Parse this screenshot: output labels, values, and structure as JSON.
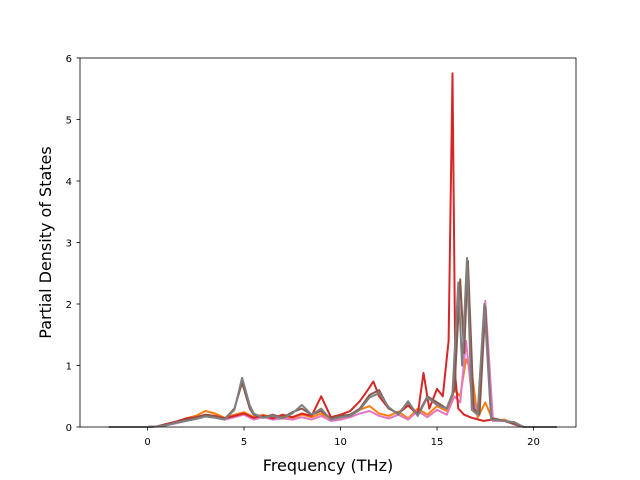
{
  "chart_data": {
    "type": "line",
    "title": "",
    "xlabel": "Frequency (THz)",
    "ylabel": "Partial Density of States",
    "xlim": [
      -3.5,
      22.2
    ],
    "ylim": [
      0,
      6
    ],
    "xticks": [
      0,
      5,
      10,
      15,
      20
    ],
    "yticks": [
      0,
      1,
      2,
      3,
      4,
      5,
      6
    ],
    "xtick_labels": [
      "0",
      "5",
      "10",
      "15",
      "20"
    ],
    "ytick_labels": [
      "0",
      "1",
      "2",
      "3",
      "4",
      "5",
      "6"
    ],
    "grid": false,
    "legend": false,
    "colors": [
      "#d62728",
      "#ff7f0e",
      "#e377c2",
      "#8c564b",
      "#7f7f7f",
      "#9467bd",
      "#bcbd22"
    ],
    "series": [
      {
        "color": "#ff7f0e",
        "x": [
          -2,
          0,
          0.5,
          1,
          1.5,
          2,
          2.5,
          3,
          3.5,
          4,
          4.5,
          5,
          5.5,
          6,
          6.5,
          7,
          7.5,
          8,
          8.5,
          9,
          9.5,
          10,
          10.5,
          11,
          11.5,
          12,
          12.5,
          13,
          13.5,
          14,
          14.5,
          15,
          15.5,
          15.9,
          16.2,
          16.5,
          16.8,
          17.1,
          17.5,
          17.9,
          18.5,
          19,
          19.5,
          21.2
        ],
        "y": [
          0,
          0,
          0.01,
          0.04,
          0.08,
          0.14,
          0.18,
          0.26,
          0.22,
          0.15,
          0.2,
          0.24,
          0.16,
          0.2,
          0.15,
          0.18,
          0.14,
          0.2,
          0.16,
          0.22,
          0.12,
          0.15,
          0.2,
          0.28,
          0.34,
          0.22,
          0.18,
          0.25,
          0.14,
          0.3,
          0.2,
          0.34,
          0.26,
          0.6,
          0.5,
          1.1,
          0.9,
          0.15,
          0.4,
          0.1,
          0.12,
          0.05,
          0,
          0
        ]
      },
      {
        "color": "#e377c2",
        "x": [
          -2,
          0,
          0.5,
          1,
          1.5,
          2,
          2.5,
          3,
          3.5,
          4,
          4.5,
          5,
          5.5,
          6,
          6.5,
          7,
          7.5,
          8,
          8.5,
          9,
          9.5,
          10,
          10.5,
          11,
          11.5,
          12,
          12.5,
          13,
          13.5,
          14,
          14.5,
          15,
          15.5,
          15.9,
          16.2,
          16.5,
          16.8,
          17.1,
          17.5,
          17.9,
          18.5,
          19,
          19.5,
          21.2
        ],
        "y": [
          0,
          0,
          0.01,
          0.03,
          0.06,
          0.1,
          0.14,
          0.18,
          0.16,
          0.12,
          0.16,
          0.2,
          0.12,
          0.16,
          0.12,
          0.14,
          0.12,
          0.16,
          0.12,
          0.18,
          0.1,
          0.12,
          0.16,
          0.22,
          0.26,
          0.18,
          0.14,
          0.2,
          0.12,
          0.26,
          0.16,
          0.28,
          0.2,
          0.5,
          0.4,
          1.4,
          0.5,
          0.2,
          2.05,
          0.1,
          0.1,
          0.04,
          0,
          0
        ]
      },
      {
        "color": "#d62728",
        "x": [
          -2,
          0,
          0.5,
          1,
          1.5,
          2,
          2.5,
          3,
          3.5,
          4,
          4.5,
          5,
          5.5,
          6,
          6.5,
          7,
          7.5,
          8,
          8.5,
          9,
          9.5,
          10,
          10.5,
          11,
          11.3,
          11.7,
          12,
          12.5,
          13,
          13.5,
          14,
          14.3,
          14.6,
          15,
          15.3,
          15.6,
          15.8,
          15.95,
          16.1,
          16.4,
          16.8,
          17.4,
          17.9,
          18.5,
          19,
          19.5,
          21.2
        ],
        "y": [
          0,
          0,
          0.01,
          0.05,
          0.09,
          0.14,
          0.16,
          0.2,
          0.18,
          0.14,
          0.18,
          0.22,
          0.15,
          0.18,
          0.14,
          0.2,
          0.16,
          0.22,
          0.18,
          0.5,
          0.16,
          0.2,
          0.26,
          0.42,
          0.55,
          0.74,
          0.5,
          0.3,
          0.22,
          0.35,
          0.2,
          0.88,
          0.3,
          0.62,
          0.5,
          1.4,
          5.75,
          0.8,
          0.3,
          0.2,
          0.15,
          0.1,
          0.12,
          0.1,
          0.05,
          0,
          0
        ]
      },
      {
        "color": "#8c564b",
        "x": [
          -2,
          0,
          0.5,
          1,
          1.5,
          2,
          2.5,
          3,
          3.5,
          4,
          4.5,
          4.9,
          5.3,
          5.5,
          6,
          6.5,
          7,
          7.5,
          8,
          8.5,
          9,
          9.5,
          10,
          10.5,
          11,
          11.5,
          12,
          12.5,
          13,
          13.5,
          14,
          14.5,
          15,
          15.5,
          15.9,
          16.2,
          16.4,
          16.6,
          16.9,
          17.2,
          17.5,
          17.8,
          18.5,
          19,
          19.5,
          21.2
        ],
        "y": [
          0,
          0,
          0.01,
          0.04,
          0.08,
          0.12,
          0.15,
          0.2,
          0.17,
          0.13,
          0.3,
          0.72,
          0.3,
          0.2,
          0.16,
          0.2,
          0.15,
          0.24,
          0.3,
          0.2,
          0.26,
          0.14,
          0.18,
          0.2,
          0.3,
          0.52,
          0.6,
          0.3,
          0.22,
          0.4,
          0.2,
          0.5,
          0.4,
          0.3,
          0.6,
          2.4,
          1.2,
          2.7,
          0.3,
          0.2,
          1.95,
          0.15,
          0.1,
          0.05,
          0,
          0
        ]
      },
      {
        "color": "#7f7f7f",
        "x": [
          -2,
          0,
          0.5,
          1,
          1.5,
          2,
          2.5,
          3,
          3.5,
          4,
          4.5,
          4.9,
          5.3,
          5.5,
          6,
          6.5,
          7,
          7.5,
          8,
          8.5,
          9,
          9.5,
          10,
          10.5,
          11,
          11.5,
          12,
          12.5,
          13,
          13.5,
          14,
          14.5,
          15,
          15.5,
          15.8,
          16.1,
          16.3,
          16.55,
          16.8,
          17.1,
          17.45,
          17.8,
          18.5,
          19,
          19.5,
          21.2
        ],
        "y": [
          0,
          0,
          0.01,
          0.03,
          0.07,
          0.1,
          0.13,
          0.17,
          0.15,
          0.12,
          0.28,
          0.8,
          0.35,
          0.22,
          0.15,
          0.18,
          0.14,
          0.22,
          0.36,
          0.2,
          0.3,
          0.12,
          0.16,
          0.18,
          0.28,
          0.48,
          0.55,
          0.32,
          0.2,
          0.42,
          0.18,
          0.48,
          0.36,
          0.3,
          0.55,
          2.35,
          1.0,
          2.75,
          0.28,
          0.2,
          2.0,
          0.12,
          0.1,
          0.08,
          0,
          0
        ]
      }
    ]
  }
}
